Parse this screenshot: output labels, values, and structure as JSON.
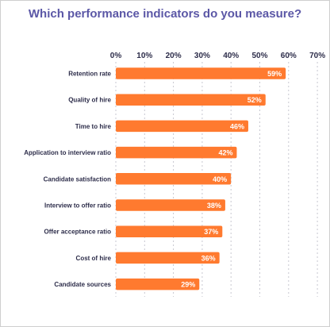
{
  "colors": {
    "bar": "#ff7a2f",
    "title": "#5b57a6",
    "grid": "#c7c7d0",
    "text": "#2d2d4a"
  },
  "chart_data": {
    "type": "bar",
    "orientation": "horizontal",
    "title": "Which performance indicators do you measure?",
    "categories": [
      "Retention rate",
      "Quality of hire",
      "Time to hire",
      "Application to interview ratio",
      "Candidate satisfaction",
      "Interview to offer ratio",
      "Offer acceptance ratio",
      "Cost of hire",
      "Candidate sources"
    ],
    "values": [
      59,
      52,
      46,
      42,
      40,
      38,
      37,
      36,
      29
    ],
    "data_labels": [
      "59%",
      "52%",
      "46%",
      "42%",
      "40%",
      "38%",
      "37%",
      "36%",
      "29%"
    ],
    "xlim": [
      0,
      70
    ],
    "x_ticks": [
      0,
      10,
      20,
      30,
      40,
      50,
      60,
      70
    ],
    "x_tick_labels": [
      "0%",
      "10%",
      "20%",
      "30%",
      "40%",
      "50%",
      "60%",
      "70%"
    ],
    "grid": true,
    "tick_position": "top"
  }
}
